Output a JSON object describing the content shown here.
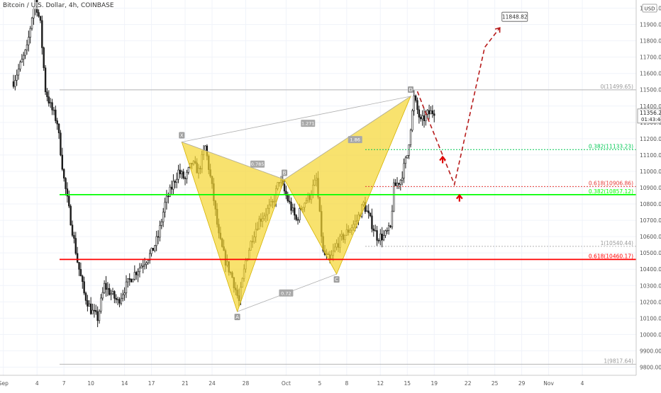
{
  "header": {
    "symbol_title": "Bitcoin / U.S. Dollar, 4h, COINBASE",
    "currency": "USD"
  },
  "price_badges": {
    "last_price": "11356.25",
    "countdown": "01:43:44"
  },
  "colors": {
    "bullish": "#26a69a",
    "bearish": "#ef5350",
    "candle_body": "#1b1b1b",
    "pattern_fill": "#f5d630",
    "green_level": "#00ff00",
    "red_level": "#ff0000",
    "projection": "#b71c1c",
    "grid": "#f0f3fa",
    "axis_text": "#555555"
  },
  "chart_data": {
    "type": "candlestick",
    "x_axis": {
      "tick_labels": [
        "Sep",
        "4",
        "7",
        "10",
        "14",
        "17",
        "21",
        "24",
        "28",
        "Oct",
        "5",
        "8",
        "12",
        "15",
        "19",
        "22",
        "25",
        "29",
        "Nov",
        "4"
      ]
    },
    "y_axis": {
      "range": [
        9750,
        12050
      ],
      "tick_labels": [
        "12000.00",
        "11900.00",
        "11800.00",
        "11700.00",
        "11600.00",
        "11500.00",
        "11400.00",
        "11300.00",
        "11200.00",
        "11100.00",
        "11000.00",
        "10900.00",
        "10800.00",
        "10700.00",
        "10600.00",
        "10500.00",
        "10400.00",
        "10300.00",
        "10200.00",
        "10100.00",
        "10000.00",
        "9900.00",
        "9800.00"
      ]
    },
    "price_path": [
      {
        "t": 0,
        "p": 11550
      },
      {
        "t": 4,
        "p": 11650
      },
      {
        "t": 8,
        "p": 11750
      },
      {
        "t": 11,
        "p": 11950
      },
      {
        "t": 13,
        "p": 12050
      },
      {
        "t": 16,
        "p": 11900
      },
      {
        "t": 19,
        "p": 11500
      },
      {
        "t": 22,
        "p": 11400
      },
      {
        "t": 26,
        "p": 11300
      },
      {
        "t": 30,
        "p": 10950
      },
      {
        "t": 34,
        "p": 10700
      },
      {
        "t": 38,
        "p": 10450
      },
      {
        "t": 42,
        "p": 10250
      },
      {
        "t": 46,
        "p": 10150
      },
      {
        "t": 50,
        "p": 10100
      },
      {
        "t": 54,
        "p": 10300
      },
      {
        "t": 58,
        "p": 10250
      },
      {
        "t": 62,
        "p": 10200
      },
      {
        "t": 66,
        "p": 10280
      },
      {
        "t": 70,
        "p": 10350
      },
      {
        "t": 74,
        "p": 10400
      },
      {
        "t": 78,
        "p": 10450
      },
      {
        "t": 82,
        "p": 10500
      },
      {
        "t": 86,
        "p": 10600
      },
      {
        "t": 90,
        "p": 10800
      },
      {
        "t": 94,
        "p": 10900
      },
      {
        "t": 98,
        "p": 11000
      },
      {
        "t": 102,
        "p": 10950
      },
      {
        "t": 106,
        "p": 11050
      },
      {
        "t": 110,
        "p": 11000
      },
      {
        "t": 114,
        "p": 11150
      },
      {
        "t": 118,
        "p": 10900
      },
      {
        "t": 122,
        "p": 10600
      },
      {
        "t": 126,
        "p": 10450
      },
      {
        "t": 130,
        "p": 10350
      },
      {
        "t": 134,
        "p": 10200
      },
      {
        "t": 138,
        "p": 10450
      },
      {
        "t": 142,
        "p": 10600
      },
      {
        "t": 146,
        "p": 10700
      },
      {
        "t": 150,
        "p": 10750
      },
      {
        "t": 154,
        "p": 10800
      },
      {
        "t": 158,
        "p": 10950
      },
      {
        "t": 160,
        "p": 10900
      },
      {
        "t": 164,
        "p": 10800
      },
      {
        "t": 168,
        "p": 10700
      },
      {
        "t": 172,
        "p": 10800
      },
      {
        "t": 176,
        "p": 10850
      },
      {
        "t": 180,
        "p": 10950
      },
      {
        "t": 184,
        "p": 10500
      },
      {
        "t": 188,
        "p": 10450
      },
      {
        "t": 192,
        "p": 10550
      },
      {
        "t": 196,
        "p": 10600
      },
      {
        "t": 200,
        "p": 10650
      },
      {
        "t": 204,
        "p": 10700
      },
      {
        "t": 208,
        "p": 10800
      },
      {
        "t": 212,
        "p": 10700
      },
      {
        "t": 216,
        "p": 10600
      },
      {
        "t": 220,
        "p": 10600
      },
      {
        "t": 224,
        "p": 10650
      },
      {
        "t": 226,
        "p": 10900
      },
      {
        "t": 230,
        "p": 10950
      },
      {
        "t": 234,
        "p": 11100
      },
      {
        "t": 238,
        "p": 11450
      },
      {
        "t": 242,
        "p": 11300
      },
      {
        "t": 246,
        "p": 11350
      },
      {
        "t": 250,
        "p": 11370
      }
    ],
    "harmonic_pattern": {
      "points": [
        {
          "label": "X",
          "t": 100,
          "p": 11180
        },
        {
          "label": "A",
          "t": 133,
          "p": 10140
        },
        {
          "label": "B",
          "t": 161,
          "p": 10950
        },
        {
          "label": "C",
          "t": 192,
          "p": 10370
        },
        {
          "label": "D",
          "t": 236,
          "p": 11460
        }
      ],
      "ratios": [
        {
          "label": "0.785",
          "t": 145,
          "p": 11040
        },
        {
          "label": "1.271",
          "t": 175,
          "p": 11290
        },
        {
          "label": "1.86",
          "t": 203,
          "p": 11190
        },
        {
          "label": "0.72",
          "t": 162,
          "p": 10250
        }
      ]
    },
    "levels": [
      {
        "label": "0(11499.65)",
        "price": 11499.65,
        "style": "solid",
        "color": "#b5b5b5"
      },
      {
        "label": "0.382(11133.23)",
        "price": 11133.23,
        "style": "dotted",
        "color": "#00c853"
      },
      {
        "label": "0.618(10906.86)",
        "price": 10906.86,
        "style": "dotted",
        "color": "#e53935"
      },
      {
        "label": "0.382(10857.12)",
        "price": 10857.12,
        "style": "solid",
        "color": "#00ff00"
      },
      {
        "label": "1(10540.44)",
        "price": 10540.44,
        "style": "dotted",
        "color": "#b5b5b5"
      },
      {
        "label": "0.618(10460.17)",
        "price": 10460.17,
        "style": "solid",
        "color": "#ff0000"
      },
      {
        "label": "1(9817.64)",
        "price": 9817.64,
        "style": "solid",
        "color": "#b5b5b5"
      }
    ],
    "projection": {
      "path": [
        {
          "t": 240,
          "p": 11490
        },
        {
          "t": 246,
          "p": 11330
        },
        {
          "t": 262,
          "p": 10920
        },
        {
          "t": 280,
          "p": 11760
        },
        {
          "t": 289,
          "p": 11880
        }
      ],
      "target_label": "11848.82"
    },
    "arrows": [
      {
        "t": 255,
        "p": 11080,
        "direction": "up"
      },
      {
        "t": 265,
        "p": 10845,
        "direction": "up"
      }
    ]
  }
}
